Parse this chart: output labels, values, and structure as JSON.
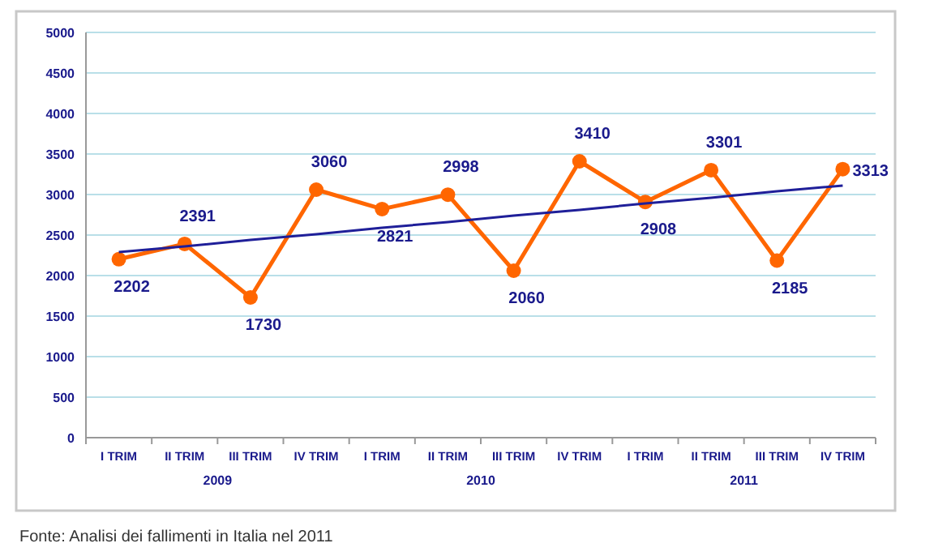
{
  "chart_data": {
    "type": "line",
    "categories": [
      "I TRIM",
      "II TRIM",
      "III TRIM",
      "IV TRIM",
      "I TRIM",
      "II TRIM",
      "III TRIM",
      "IV TRIM",
      "I TRIM",
      "II TRIM",
      "III TRIM",
      "IV TRIM"
    ],
    "series": [
      {
        "color": "#ff6600",
        "marker": "circle",
        "data_labels": true,
        "values": [
          2202,
          2391,
          1730,
          3060,
          2821,
          2998,
          2060,
          3410,
          2908,
          3301,
          2185,
          3313
        ]
      },
      {
        "type": "line",
        "color": "#1f1f99",
        "marker": "none",
        "values": [
          2290,
          2360,
          2440,
          2510,
          2590,
          2660,
          2740,
          2810,
          2890,
          2960,
          3040,
          3110
        ]
      }
    ],
    "ylim": [
      0,
      5000
    ],
    "yticks": [
      0,
      500,
      1000,
      1500,
      2000,
      2500,
      3000,
      3500,
      4000,
      4500,
      5000
    ],
    "grid": "y",
    "annotations": [
      "2009",
      "2010",
      "2011",
      "Fonte: Analisi dei fallimenti in Italia nel 2011"
    ]
  }
}
